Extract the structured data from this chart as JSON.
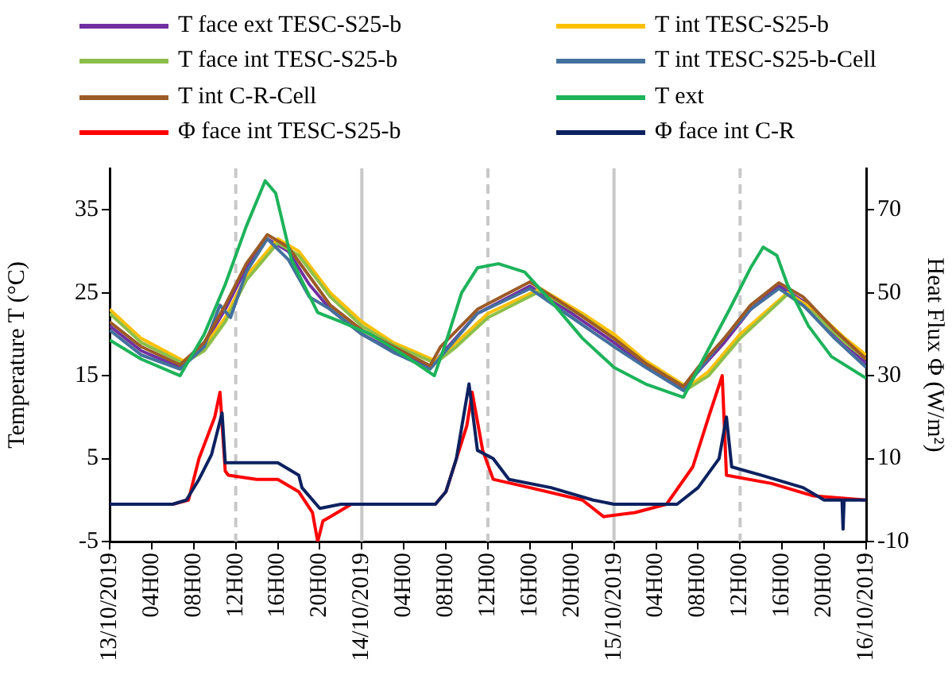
{
  "chart_data": {
    "type": "line",
    "ylabel": "Temperature T (°C)",
    "y2label": "Heat Flux Φ (W/m²)",
    "legend": "top",
    "marker": "none",
    "line_style": "solid",
    "xlim": [
      "2019-10-13",
      "2019-10-16"
    ],
    "xticks": [
      {
        "value": "2019-10-13",
        "label": "13/10/2019"
      },
      {
        "value": "2019-10-13T04:00",
        "label": "04H00"
      },
      {
        "value": "2019-10-13T08:00",
        "label": "08H00"
      },
      {
        "value": "2019-10-13T12:00",
        "label": "12H00"
      },
      {
        "value": "2019-10-13T16:00",
        "label": "16H00"
      },
      {
        "value": "2019-10-13T20:00",
        "label": "20H00"
      },
      {
        "value": "2019-10-14",
        "label": "14/10/2019"
      },
      {
        "value": "2019-10-14T04:00",
        "label": "04H00"
      },
      {
        "value": "2019-10-14T08:00",
        "label": "08H00"
      },
      {
        "value": "2019-10-14T12:00",
        "label": "12H00"
      },
      {
        "value": "2019-10-14T16:00",
        "label": "16H00"
      },
      {
        "value": "2019-10-14T20:00",
        "label": "20H00"
      },
      {
        "value": "2019-10-15",
        "label": "15/10/2019"
      },
      {
        "value": "2019-10-15T04:00",
        "label": "04H00"
      },
      {
        "value": "2019-10-15T08:00",
        "label": "08H00"
      },
      {
        "value": "2019-10-15T12:00",
        "label": "12H00"
      },
      {
        "value": "2019-10-15T16:00",
        "label": "16H00"
      },
      {
        "value": "2019-10-15T20:00",
        "label": "20H00"
      },
      {
        "value": "2019-10-16",
        "label": "16/10/2019"
      }
    ],
    "ylim": [
      -5,
      40
    ],
    "yticks": [
      -5,
      5,
      15,
      25,
      35
    ],
    "y2lim": [
      -10,
      80
    ],
    "y2ticks": [
      -10,
      10,
      30,
      50,
      70
    ],
    "ref_lines": [
      {
        "axis": "x",
        "value": "2019-10-13T12:00",
        "color": "#c8c8c8",
        "line_style": "dashed"
      },
      {
        "axis": "x",
        "value": "2019-10-14",
        "color": "#c8c8c8",
        "line_style": "solid"
      },
      {
        "axis": "x",
        "value": "2019-10-14T12:00",
        "color": "#c8c8c8",
        "line_style": "dashed"
      },
      {
        "axis": "x",
        "value": "2019-10-15",
        "color": "#c8c8c8",
        "line_style": "solid"
      },
      {
        "axis": "x",
        "value": "2019-10-15T12:00",
        "color": "#c8c8c8",
        "line_style": "dashed"
      }
    ],
    "series": [
      {
        "name": "T face ext TESC-S25-b",
        "color": "#7030a0",
        "x": [
          "2019-10-13T00:00",
          "2019-10-13T03:00",
          "2019-10-13T06:42",
          "2019-10-13T09:00",
          "2019-10-13T11:00",
          "2019-10-13T13:00",
          "2019-10-13T15:00",
          "2019-10-13T17:00",
          "2019-10-13T19:00",
          "2019-10-13T21:00",
          "2019-10-14T00:00",
          "2019-10-14T03:00",
          "2019-10-14T06:30",
          "2019-10-14T08:00",
          "2019-10-14T11:00",
          "2019-10-14T16:00",
          "2019-10-14T20:00",
          "2019-10-15T00:00",
          "2019-10-15T03:00",
          "2019-10-15T06:36",
          "2019-10-15T08:00",
          "2019-10-15T10:30",
          "2019-10-15T13:00",
          "2019-10-15T15:42",
          "2019-10-15T18:00",
          "2019-10-15T21:00",
          "2019-10-16T00:00"
        ],
        "values": [
          21,
          18,
          16,
          18.8,
          23,
          28,
          31.5,
          30,
          26,
          23,
          20,
          18,
          16,
          18.2,
          22.5,
          25.8,
          22.5,
          19,
          16.2,
          13.5,
          15.5,
          19,
          23,
          25.8,
          24,
          20,
          16.5
        ]
      },
      {
        "name": "T int TESC-S25-b",
        "color": "#ffc000",
        "x": [
          "2019-10-13T00:00",
          "2019-10-13T03:00",
          "2019-10-13T07:00",
          "2019-10-13T09:00",
          "2019-10-13T11:00",
          "2019-10-13T13:00",
          "2019-10-13T16:00",
          "2019-10-13T18:00",
          "2019-10-13T21:00",
          "2019-10-14T00:00",
          "2019-10-14T03:00",
          "2019-10-14T07:00",
          "2019-10-14T09:00",
          "2019-10-14T12:00",
          "2019-10-14T17:00",
          "2019-10-14T21:00",
          "2019-10-15T00:00",
          "2019-10-15T03:00",
          "2019-10-15T07:00",
          "2019-10-15T09:00",
          "2019-10-15T12:00",
          "2019-10-15T16:30",
          "2019-10-15T19:00",
          "2019-10-15T22:00",
          "2019-10-16T00:00"
        ],
        "values": [
          23,
          19.5,
          16.8,
          18.5,
          22,
          27,
          31.5,
          30,
          25,
          21.5,
          19,
          16.8,
          19,
          22.5,
          25.5,
          22.5,
          20,
          16.8,
          13.6,
          15.5,
          20,
          25,
          23,
          19.5,
          17.5
        ]
      },
      {
        "name": "T face int TESC-S25-b",
        "color": "#8cbf4a",
        "x": [
          "2019-10-13T00:00",
          "2019-10-13T03:00",
          "2019-10-13T07:00",
          "2019-10-13T09:00",
          "2019-10-13T11:00",
          "2019-10-13T13:00",
          "2019-10-13T16:00",
          "2019-10-13T18:00",
          "2019-10-13T21:00",
          "2019-10-14T00:00",
          "2019-10-14T03:00",
          "2019-10-14T07:00",
          "2019-10-14T09:00",
          "2019-10-14T12:00",
          "2019-10-14T17:00",
          "2019-10-14T21:00",
          "2019-10-15T00:00",
          "2019-10-15T03:00",
          "2019-10-15T07:00",
          "2019-10-15T09:00",
          "2019-10-15T12:00",
          "2019-10-15T16:30",
          "2019-10-15T19:00",
          "2019-10-15T22:00",
          "2019-10-16T00:00"
        ],
        "values": [
          22.5,
          19,
          16.5,
          18,
          21.5,
          26.5,
          31,
          29.5,
          24.5,
          21,
          18.7,
          16.5,
          18.5,
          22,
          25.2,
          22.2,
          19.5,
          16.5,
          13.4,
          15,
          19.5,
          24.8,
          22.5,
          19,
          17
        ]
      },
      {
        "name": "T int TESC-S25-b-Cell",
        "color": "#44709d",
        "x": [
          "2019-10-13T00:00",
          "2019-10-13T03:00",
          "2019-10-13T06:42",
          "2019-10-13T09:00",
          "2019-10-13T10:30",
          "2019-10-13T11:30",
          "2019-10-13T13:00",
          "2019-10-13T15:00",
          "2019-10-13T17:00",
          "2019-10-13T19:00",
          "2019-10-13T21:00",
          "2019-10-14T00:00",
          "2019-10-14T03:00",
          "2019-10-14T06:30",
          "2019-10-14T08:00",
          "2019-10-14T11:00",
          "2019-10-14T16:00",
          "2019-10-14T20:00",
          "2019-10-15T00:00",
          "2019-10-15T03:00",
          "2019-10-15T06:36",
          "2019-10-15T08:00",
          "2019-10-15T10:30",
          "2019-10-15T13:00",
          "2019-10-15T15:42",
          "2019-10-15T18:00",
          "2019-10-15T21:00",
          "2019-10-16T00:00"
        ],
        "values": [
          20.5,
          17.5,
          15.8,
          18.5,
          23.5,
          22,
          27.5,
          31.5,
          29,
          24.5,
          23,
          20,
          17.8,
          15.8,
          18,
          22.5,
          25.5,
          22,
          18.5,
          16,
          13.2,
          15.5,
          19.5,
          23,
          25.5,
          23.5,
          19.5,
          16
        ]
      },
      {
        "name": "T int C-R-Cell",
        "color": "#9c5a26",
        "x": [
          "2019-10-13T00:00",
          "2019-10-13T03:00",
          "2019-10-13T06:42",
          "2019-10-13T09:00",
          "2019-10-13T11:00",
          "2019-10-13T13:00",
          "2019-10-13T15:00",
          "2019-10-13T17:00",
          "2019-10-13T19:00",
          "2019-10-13T21:00",
          "2019-10-14T00:00",
          "2019-10-14T03:00",
          "2019-10-14T06:30",
          "2019-10-14T07:30",
          "2019-10-14T11:00",
          "2019-10-14T14:00",
          "2019-10-14T16:00",
          "2019-10-14T20:00",
          "2019-10-15T00:00",
          "2019-10-15T03:00",
          "2019-10-15T06:36",
          "2019-10-15T08:00",
          "2019-10-15T10:30",
          "2019-10-15T13:00",
          "2019-10-15T15:42",
          "2019-10-15T18:00",
          "2019-10-15T21:00",
          "2019-10-16T00:00"
        ],
        "values": [
          21.5,
          18.5,
          16.3,
          19,
          23.5,
          28.5,
          32,
          30.5,
          27,
          23.5,
          20.5,
          18.5,
          16.2,
          18.5,
          23,
          25,
          26.3,
          23,
          19.5,
          16.5,
          13.7,
          16,
          19.5,
          23.5,
          26.2,
          24.5,
          20.5,
          17
        ]
      },
      {
        "name": "T ext",
        "color": "#1db35a",
        "x": [
          "2019-10-13T00:00",
          "2019-10-13T03:00",
          "2019-10-13T06:42",
          "2019-10-13T09:00",
          "2019-10-13T11:00",
          "2019-10-13T13:00",
          "2019-10-13T14:48",
          "2019-10-13T15:48",
          "2019-10-13T17:18",
          "2019-10-13T19:48",
          "2019-10-13T22:00",
          "2019-10-14T00:48",
          "2019-10-14T04:00",
          "2019-10-14T06:54",
          "2019-10-14T08:00",
          "2019-10-14T09:30",
          "2019-10-14T11:00",
          "2019-10-14T13:00",
          "2019-10-14T15:30",
          "2019-10-14T18:00",
          "2019-10-14T21:00",
          "2019-10-15T00:00",
          "2019-10-15T03:00",
          "2019-10-15T06:36",
          "2019-10-15T08:30",
          "2019-10-15T11:00",
          "2019-10-15T13:00",
          "2019-10-15T14:12",
          "2019-10-15T15:30",
          "2019-10-15T16:30",
          "2019-10-15T18:30",
          "2019-10-15T20:42",
          "2019-10-16T00:00"
        ],
        "values": [
          19.3,
          17,
          15,
          20,
          26,
          33,
          38.5,
          37,
          29,
          22.6,
          21.5,
          20,
          17.5,
          15,
          19,
          25,
          28,
          28.5,
          27.5,
          24,
          19.5,
          16,
          14,
          12.4,
          17,
          23,
          28,
          30.5,
          29.5,
          26,
          21,
          17.3,
          14.7
        ]
      },
      {
        "name": "Φ face int TESC-S25-b",
        "color": "#ff0000",
        "axis": "y2",
        "x": [
          "2019-10-13T00:00",
          "2019-10-13T06:00",
          "2019-10-13T07:30",
          "2019-10-13T08:30",
          "2019-10-13T10:00",
          "2019-10-13T10:30",
          "2019-10-13T11:00",
          "2019-10-13T11:18",
          "2019-10-13T14:00",
          "2019-10-13T16:00",
          "2019-10-13T18:00",
          "2019-10-13T19:18",
          "2019-10-13T19:48",
          "2019-10-13T20:18",
          "2019-10-13T21:00",
          "2019-10-13T23:00",
          "2019-10-14T07:00",
          "2019-10-14T08:00",
          "2019-10-14T09:00",
          "2019-10-14T10:00",
          "2019-10-14T10:30",
          "2019-10-14T11:30",
          "2019-10-14T12:30",
          "2019-10-14T16:00",
          "2019-10-14T21:00",
          "2019-10-14T23:00",
          "2019-10-15T02:00",
          "2019-10-15T05:00",
          "2019-10-15T07:30",
          "2019-10-15T09:00",
          "2019-10-15T10:18",
          "2019-10-15T10:42",
          "2019-10-15T15:00",
          "2019-10-15T19:00",
          "2019-10-16T00:00"
        ],
        "values": [
          -1,
          -1,
          0,
          10,
          20,
          26,
          7,
          6,
          5,
          5,
          2,
          -3,
          -10,
          -5,
          -4,
          -1,
          -1,
          2,
          10,
          18,
          26,
          12,
          5,
          3,
          0,
          -4,
          -3,
          -1,
          8,
          20,
          30,
          6,
          4,
          1,
          0
        ]
      },
      {
        "name": "Φ face int C-R",
        "color": "#0c2160",
        "axis": "y2",
        "x": [
          "2019-10-13T00:00",
          "2019-10-13T06:00",
          "2019-10-13T07:18",
          "2019-10-13T08:30",
          "2019-10-13T09:42",
          "2019-10-13T10:42",
          "2019-10-13T11:00",
          "2019-10-13T11:18",
          "2019-10-13T16:00",
          "2019-10-13T18:00",
          "2019-10-13T18:18",
          "2019-10-13T20:00",
          "2019-10-13T22:00",
          "2019-10-14T07:00",
          "2019-10-14T08:00",
          "2019-10-14T09:00",
          "2019-10-14T10:12",
          "2019-10-14T11:00",
          "2019-10-14T12:30",
          "2019-10-14T14:00",
          "2019-10-14T18:00",
          "2019-10-14T22:00",
          "2019-10-15T00:00",
          "2019-10-15T06:00",
          "2019-10-15T08:00",
          "2019-10-15T10:00",
          "2019-10-15T10:42",
          "2019-10-15T11:12",
          "2019-10-15T14:00",
          "2019-10-15T18:00",
          "2019-10-15T20:00",
          "2019-10-15T21:42",
          "2019-10-15T21:48",
          "2019-10-15T21:54",
          "2019-10-16T00:00"
        ],
        "values": [
          -1,
          -1,
          0,
          5,
          11,
          21,
          9,
          9,
          9,
          6,
          3,
          -2,
          -1,
          -1,
          2,
          10,
          28,
          12,
          10,
          5,
          3,
          0,
          -1,
          -1,
          3,
          10,
          20,
          8,
          6,
          3,
          0,
          0,
          -7,
          0,
          0
        ]
      }
    ]
  }
}
